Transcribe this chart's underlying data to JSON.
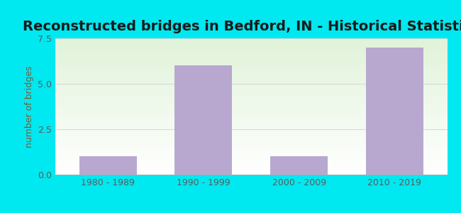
{
  "categories": [
    "1980 - 1989",
    "1990 - 1999",
    "2000 - 2009",
    "2010 - 2019"
  ],
  "values": [
    1,
    6,
    1,
    7
  ],
  "bar_color": "#b8a8d0",
  "title": "Reconstructed bridges in Bedford, IN - Historical Statistics",
  "ylabel": "number of bridges",
  "ylim": [
    0,
    7.5
  ],
  "yticks": [
    0,
    2.5,
    5,
    7.5
  ],
  "outer_bg": "#00e8f0",
  "title_color": "#1a1a1a",
  "axis_label_color": "#7a5c3a",
  "tick_label_color": "#5a5a5a",
  "grid_color": "#d8d8d8",
  "title_fontsize": 14,
  "label_fontsize": 9,
  "bar_width": 0.6
}
